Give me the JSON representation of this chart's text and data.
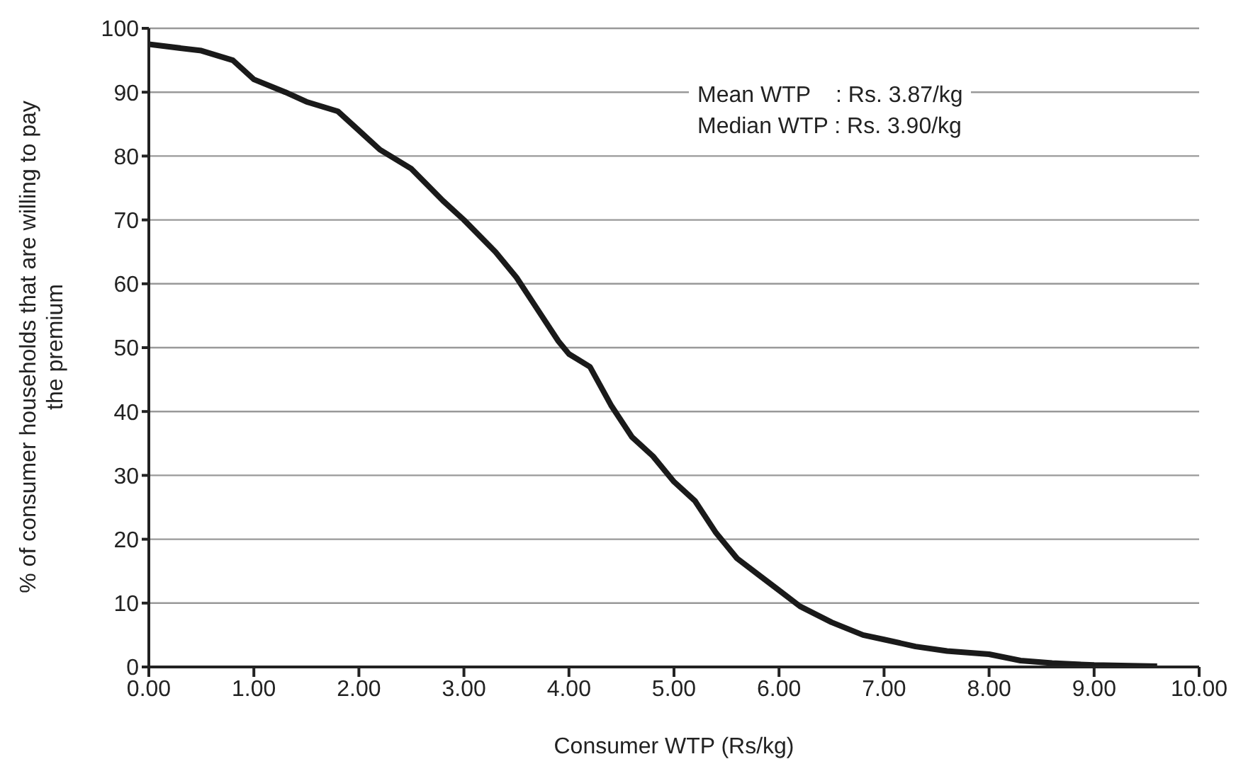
{
  "chart_data": {
    "type": "line",
    "xlabel": "Consumer WTP (Rs/kg)",
    "ylabel": "% of consumer households that are willing to pay the premium",
    "x": [
      0,
      0.5,
      0.8,
      1.0,
      1.3,
      1.5,
      1.8,
      2.0,
      2.2,
      2.5,
      2.8,
      3.0,
      3.3,
      3.5,
      3.7,
      3.9,
      4.0,
      4.2,
      4.4,
      4.6,
      4.8,
      5.0,
      5.2,
      5.4,
      5.6,
      5.8,
      6.0,
      6.2,
      6.5,
      6.8,
      7.0,
      7.3,
      7.6,
      8.0,
      8.3,
      8.6,
      9.0,
      9.6
    ],
    "series": [
      {
        "color": "#1a1a1a",
        "values": [
          97.5,
          96.5,
          95,
          92,
          90,
          88.5,
          87,
          84,
          81,
          78,
          73,
          70,
          65,
          61,
          56,
          51,
          49,
          47,
          41,
          36,
          33,
          29,
          26,
          21,
          17,
          14.5,
          12,
          9.5,
          7,
          5,
          4.3,
          3.2,
          2.5,
          2,
          1,
          0.6,
          0.3,
          0.1
        ]
      }
    ],
    "xlim": [
      0,
      10
    ],
    "ylim": [
      0,
      100
    ],
    "xticks": [
      {
        "value": 0,
        "label": "0.00"
      },
      {
        "value": 1,
        "label": "1.00"
      },
      {
        "value": 2,
        "label": "2.00"
      },
      {
        "value": 3,
        "label": "3.00"
      },
      {
        "value": 4,
        "label": "4.00"
      },
      {
        "value": 5,
        "label": "5.00"
      },
      {
        "value": 6,
        "label": "6.00"
      },
      {
        "value": 7,
        "label": "7.00"
      },
      {
        "value": 8,
        "label": "8.00"
      },
      {
        "value": 9,
        "label": "9.00"
      },
      {
        "value": 10,
        "label": "10.00"
      }
    ],
    "yticks": [
      0,
      10,
      20,
      30,
      40,
      50,
      60,
      70,
      80,
      90,
      100
    ],
    "grid": "y",
    "marker": "none",
    "line_style": "solid",
    "annotations": [
      "Mean WTP    : Rs. 3.87/kg",
      "Median WTP : Rs. 3.90/kg"
    ]
  }
}
